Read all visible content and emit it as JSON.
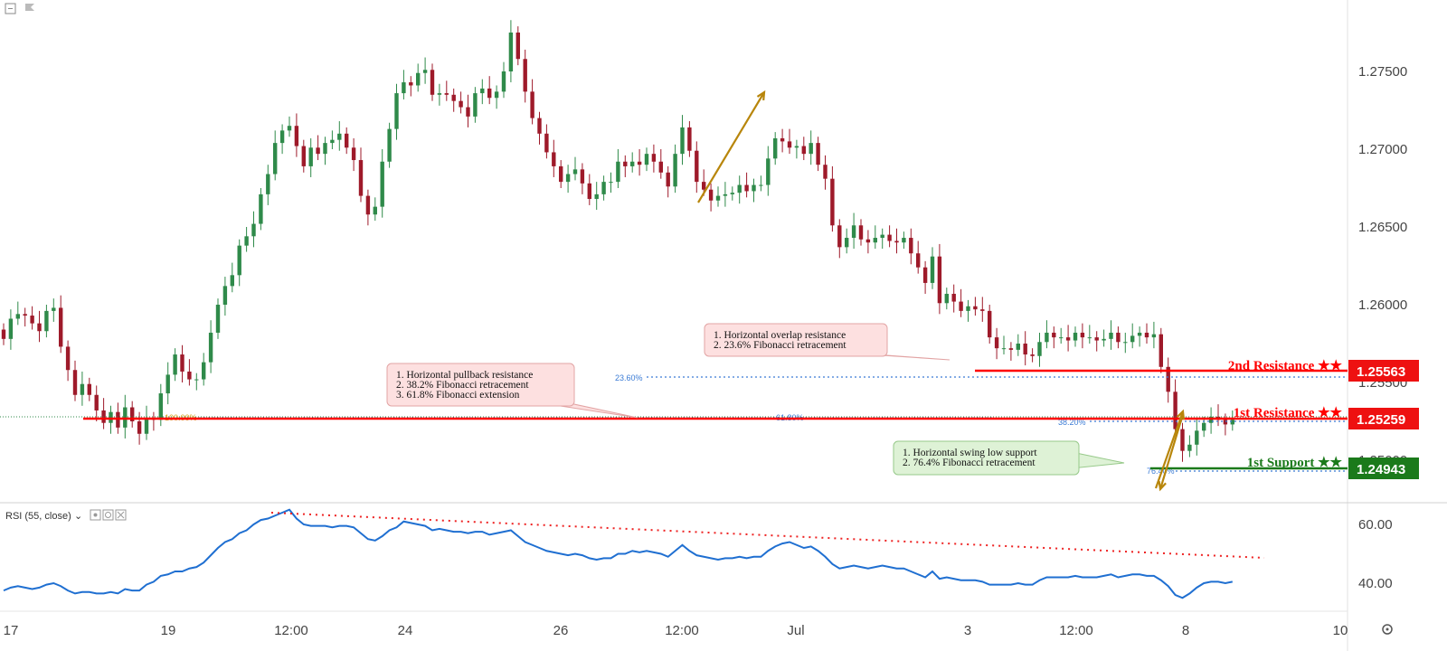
{
  "chart_data": {
    "type": "candlestick",
    "price_axis": {
      "ticks": [
        "1.27500",
        "1.27000",
        "1.26500",
        "1.26000",
        "1.25500",
        "1.25000"
      ],
      "tick_values": [
        1.275,
        1.27,
        1.265,
        1.26,
        1.255,
        1.25
      ]
    },
    "time_axis": {
      "labels": [
        "17",
        "19",
        "12:00",
        "24",
        "26",
        "12:00",
        "Jul",
        "3",
        "12:00",
        "8",
        "10"
      ]
    },
    "candles_close": [
      1.2578,
      1.2591,
      1.2594,
      1.2593,
      1.2588,
      1.2583,
      1.2596,
      1.2598,
      1.2573,
      1.2558,
      1.2542,
      1.2549,
      1.2542,
      1.2532,
      1.2524,
      1.2531,
      1.2521,
      1.2534,
      1.2525,
      1.2517,
      1.2527,
      1.2526,
      1.2543,
      1.2555,
      1.2568,
      1.2557,
      1.2552,
      1.2552,
      1.2563,
      1.2582,
      1.26,
      1.2612,
      1.2619,
      1.2638,
      1.2644,
      1.2652,
      1.2671,
      1.2684,
      1.2704,
      1.2712,
      1.2715,
      1.2702,
      1.2689,
      1.2701,
      1.2697,
      1.2704,
      1.2706,
      1.271,
      1.2701,
      1.2693,
      1.267,
      1.2658,
      1.2663,
      1.2692,
      1.2713,
      1.2736,
      1.2743,
      1.2741,
      1.2749,
      1.2751,
      1.2735,
      1.2736,
      1.2735,
      1.2731,
      1.2727,
      1.2721,
      1.2736,
      1.2739,
      1.2733,
      1.2737,
      1.275,
      1.2775,
      1.2758,
      1.2737,
      1.272,
      1.271,
      1.2698,
      1.2689,
      1.2679,
      1.2684,
      1.2687,
      1.2678,
      1.2668,
      1.2671,
      1.2679,
      1.2679,
      1.2692,
      1.2689,
      1.2692,
      1.269,
      1.2697,
      1.2692,
      1.2685,
      1.2676,
      1.2697,
      1.2714,
      1.2699,
      1.2679,
      1.2674,
      1.2667,
      1.267,
      1.2671,
      1.2672,
      1.2677,
      1.2673,
      1.2677,
      1.2677,
      1.2694,
      1.2707,
      1.2705,
      1.2701,
      1.2702,
      1.2697,
      1.2704,
      1.269,
      1.2681,
      1.2651,
      1.2637,
      1.2643,
      1.2651,
      1.2642,
      1.264,
      1.2643,
      1.2645,
      1.2641,
      1.264,
      1.2643,
      1.2633,
      1.2624,
      1.2614,
      1.2631,
      1.2601,
      1.2607,
      1.2602,
      1.2596,
      1.2599,
      1.2597,
      1.2596,
      1.2579,
      1.2572,
      1.2572,
      1.2571,
      1.2575,
      1.2568,
      1.2567,
      1.2576,
      1.2582,
      1.2579,
      1.2579,
      1.2577,
      1.2582,
      1.2579,
      1.2579,
      1.2577,
      1.2578,
      1.2582,
      1.2576,
      1.2576,
      1.258,
      1.2582,
      1.2579,
      1.2581,
      1.256,
      1.2544,
      1.252,
      1.2506,
      1.251,
      1.2519,
      1.2524,
      1.2528,
      1.2526,
      1.2523,
      1.2526
    ],
    "levels": [
      {
        "label": "2nd Resistance ★★",
        "value": "1.25563",
        "color": "#ff0000"
      },
      {
        "label": "1st Resistance ★★",
        "value": "1.25259",
        "color": "#ff0000"
      },
      {
        "label": "1st Support ★★",
        "value": "1.24943",
        "color": "#1b7a1b"
      }
    ],
    "fib_labels": [
      "23.60%",
      "38.20%",
      "76.40%",
      "100.00%",
      "61.80%"
    ],
    "annotations": {
      "overlap": [
        "1. Horizontal overlap resistance",
        "2. 23.6% Fibonacci retracement"
      ],
      "pullback": [
        "1. Horizontal pullback resistance",
        "2. 38.2% Fibonacci retracement",
        "3. 61.8% Fibonacci extension"
      ],
      "support": [
        "1. Horizontal swing low support",
        "2. 76.4% Fibonacci retracement"
      ]
    },
    "rsi": {
      "label": "RSI (55, close)",
      "ticks": [
        "60.00",
        "40.00"
      ],
      "tick_values": [
        60,
        40
      ],
      "values": [
        37.5,
        38.5,
        39,
        38.5,
        38,
        38.5,
        39.5,
        40,
        39,
        37.5,
        36.5,
        37,
        37,
        36.5,
        36.5,
        37,
        36.5,
        38,
        37.5,
        37.5,
        39.5,
        40.5,
        42.5,
        43,
        44,
        44,
        45,
        45.5,
        47,
        49.5,
        52,
        54,
        55,
        57,
        58,
        60,
        61.5,
        62,
        63,
        64,
        65,
        62,
        60,
        59.5,
        59.5,
        59.5,
        59,
        59.5,
        59.5,
        59,
        57,
        55,
        54.5,
        56,
        58,
        59,
        61,
        60.5,
        60,
        59.5,
        58,
        58.5,
        58,
        57.5,
        57.5,
        57,
        57.5,
        57.5,
        56.5,
        57,
        57.5,
        58,
        56,
        54,
        53,
        52,
        51,
        50.5,
        50,
        49.5,
        50,
        49.5,
        48.5,
        48,
        48.5,
        48.5,
        50,
        50,
        51,
        50.5,
        51,
        50.5,
        50,
        49,
        51,
        53,
        51,
        49.5,
        49,
        48.5,
        48,
        48.5,
        48.5,
        49,
        48.5,
        49,
        49,
        51,
        52.5,
        53.5,
        54,
        53,
        52,
        52.5,
        51,
        49,
        46.5,
        45,
        45.5,
        46,
        45.5,
        45,
        45.5,
        46,
        45.5,
        45,
        45,
        44,
        43,
        42,
        44,
        41.5,
        42,
        41.5,
        41,
        41,
        41,
        40.5,
        39.5,
        39.5,
        39.5,
        39.5,
        40,
        39.5,
        39.5,
        41,
        42,
        42,
        42,
        42,
        42.5,
        42,
        42,
        42,
        42.5,
        43,
        42,
        42.5,
        43,
        43,
        42.5,
        42.5,
        41,
        39,
        36,
        35,
        36.5,
        38.5,
        40,
        40.5,
        40.5,
        40,
        40.5
      ]
    }
  }
}
